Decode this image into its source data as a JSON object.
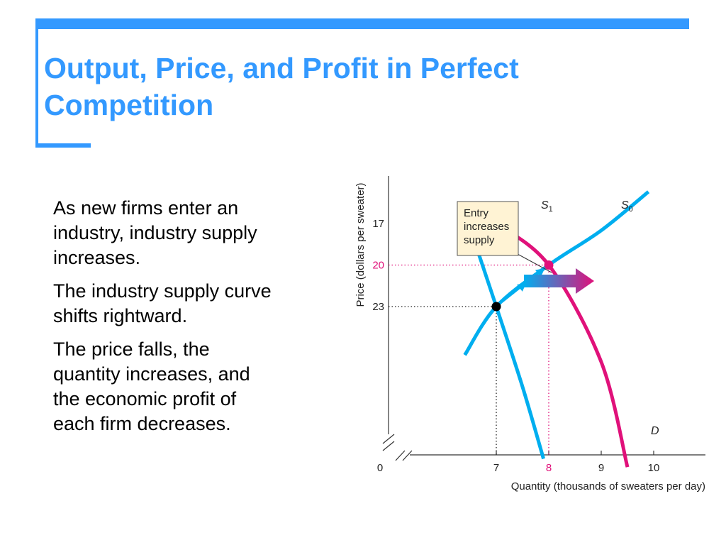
{
  "slide": {
    "title_lines": [
      "Output, Price, and Profit in Perfect",
      "Competition"
    ],
    "paragraphs": [
      [
        "As new firms enter an",
        "industry, industry supply",
        "increases."
      ],
      [
        "The industry supply curve",
        "shifts rightward."
      ],
      [
        "The price falls, the",
        "quantity increases, and",
        "the economic profit of",
        "each firm decreases."
      ]
    ]
  },
  "colors": {
    "accent": "#3399ff",
    "curve_cyan": "#00aeef",
    "curve_magenta": "#e0117a",
    "callout_fill": "#fff3d4"
  },
  "chart_data": {
    "type": "line",
    "title": "",
    "xlabel": "Quantity (thousands of sweaters per day)",
    "ylabel": "Price (dollars per sweater)",
    "origin_label": "0",
    "x_ticks": [
      7,
      8,
      9,
      10
    ],
    "y_ticks": [
      17,
      20,
      23
    ],
    "series": [
      {
        "name": "S",
        "subscript": "1",
        "x": [
          6.4,
          7.0,
          7.5,
          7.9
        ],
        "y": [
          16.2,
          23.0,
          28.8,
          34.0
        ]
      },
      {
        "name": "S",
        "subscript": "0",
        "x": [
          7.0,
          8.0,
          9.0,
          9.5
        ],
        "y": [
          17.0,
          20.0,
          27.0,
          34.6
        ]
      },
      {
        "name": "D",
        "subscript": "",
        "x": [
          6.4,
          7.0,
          8.0,
          9.0,
          9.9
        ],
        "y": [
          26.5,
          23.0,
          20.0,
          17.5,
          14.7
        ]
      }
    ],
    "equilibria": [
      {
        "x": 7,
        "y": 23,
        "color": "#000000"
      },
      {
        "x": 8,
        "y": 20,
        "color": "#e0117a"
      }
    ],
    "annotation": [
      "Entry",
      "increases",
      "supply"
    ]
  }
}
